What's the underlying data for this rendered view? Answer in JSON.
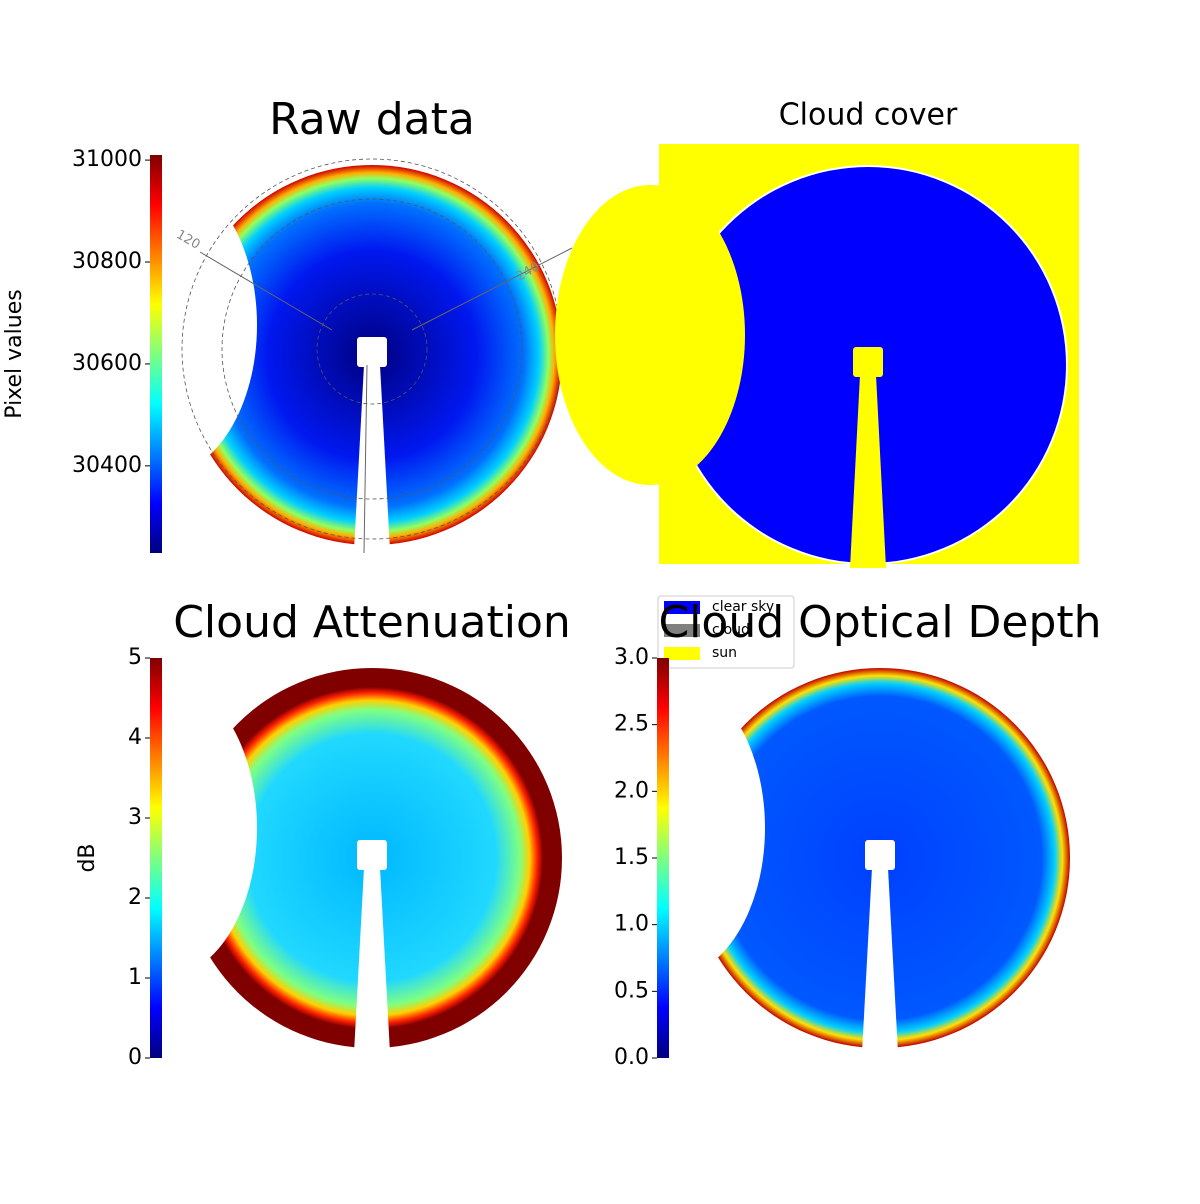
{
  "chart_data": [
    {
      "type": "image",
      "title": "Raw data",
      "colorbar_label": "Pixel values",
      "cmap": "jet",
      "clim": [
        30229,
        31010
      ],
      "cticks": [
        30400,
        30600,
        30800,
        31000
      ],
      "annotations": [
        "120",
        "240"
      ]
    },
    {
      "type": "image",
      "title": "Cloud cover",
      "classes": [
        {
          "name": "clear sky",
          "color": "#0000ff"
        },
        {
          "name": "cloud",
          "color": "#808080"
        },
        {
          "name": "sun",
          "color": "#ffff00"
        }
      ]
    },
    {
      "type": "image",
      "title": "Cloud Attenuation",
      "colorbar_label": "dB",
      "cmap": "jet",
      "clim": [
        0,
        5
      ],
      "cticks": [
        0,
        1,
        2,
        3,
        4,
        5
      ]
    },
    {
      "type": "image",
      "title": "Cloud Optical Depth",
      "cmap": "jet",
      "clim": [
        0,
        3
      ],
      "cticks": [
        {
          "value": 0,
          "label": "0.0"
        },
        0.5,
        {
          "value": 1,
          "label": "1.0"
        },
        1.5,
        {
          "value": 2,
          "label": "2.0"
        },
        2.5,
        {
          "value": 3,
          "label": "3.0"
        }
      ]
    }
  ]
}
